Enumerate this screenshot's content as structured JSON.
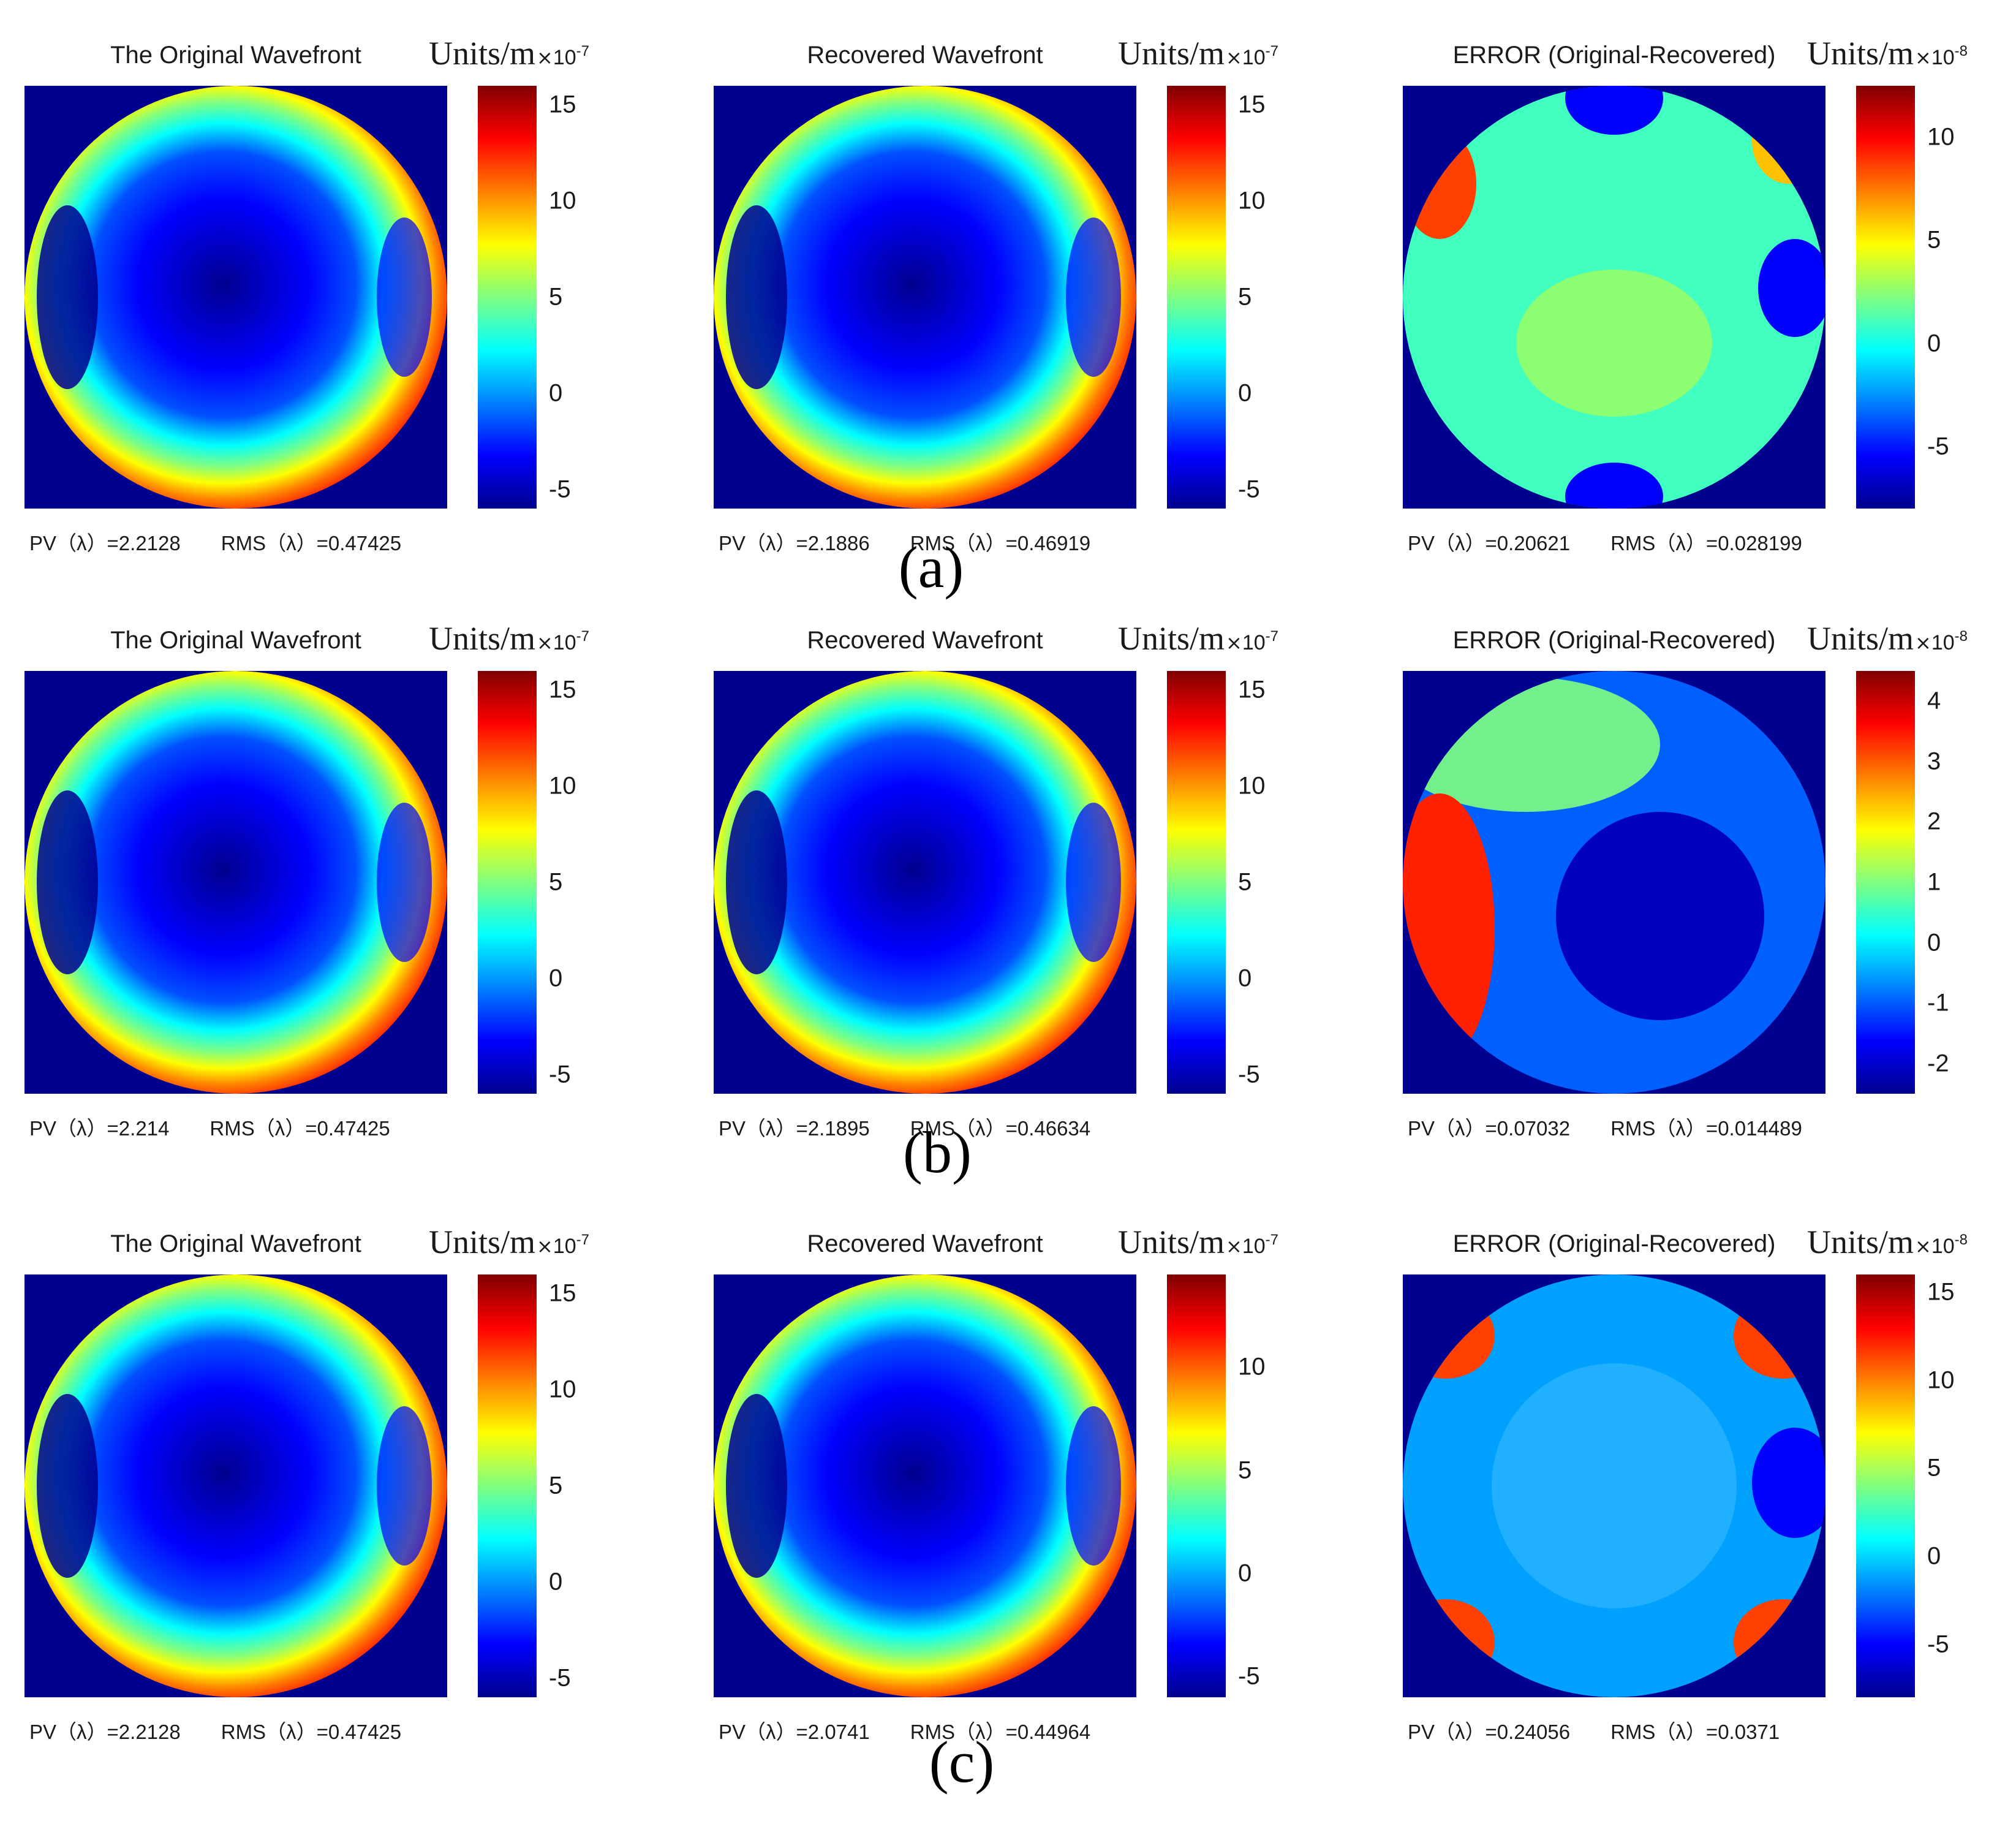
{
  "colors": {
    "jet": [
      "#00008f",
      "#0000ff",
      "#0080ff",
      "#00ffff",
      "#80ff80",
      "#ffff00",
      "#ff8000",
      "#ff0000",
      "#800000"
    ]
  },
  "row_labels": [
    "(a)",
    "(b)",
    "(c)"
  ],
  "units_label": {
    "main": "Units/m",
    "sep": "×",
    "mantissa": "10"
  },
  "chart_data": [
    {
      "type": "heatmap",
      "title": "The Original Wavefront",
      "colorbar": {
        "exponent": "-7",
        "range": [
          -6,
          16
        ],
        "ticks": [
          "-5",
          "0",
          "5",
          "10",
          "15"
        ],
        "tick_values": [
          -5,
          0,
          5,
          10,
          15
        ]
      },
      "stats": {
        "pv_label": "PV（λ）=2.2128",
        "rms_label": "RMS（λ）=0.47425",
        "pv": 2.2128,
        "rms": 0.47425
      }
    },
    {
      "type": "heatmap",
      "title": "Recovered Wavefront",
      "colorbar": {
        "exponent": "-7",
        "range": [
          -6,
          16
        ],
        "ticks": [
          "-5",
          "0",
          "5",
          "10",
          "15"
        ],
        "tick_values": [
          -5,
          0,
          5,
          10,
          15
        ]
      },
      "stats": {
        "pv_label": "PV（λ）=2.1886",
        "rms_label": "RMS（λ）=0.46919",
        "pv": 2.1886,
        "rms": 0.46919
      }
    },
    {
      "type": "heatmap",
      "title": "ERROR (Original-Recovered)",
      "colorbar": {
        "exponent": "-8",
        "range": [
          -8,
          12.5
        ],
        "ticks": [
          "-5",
          "0",
          "5",
          "10"
        ],
        "tick_values": [
          -5,
          0,
          5,
          10
        ]
      },
      "stats": {
        "pv_label": "PV（λ）=0.20621",
        "rms_label": "RMS（λ）=0.028199",
        "pv": 0.20621,
        "rms": 0.028199
      }
    },
    {
      "type": "heatmap",
      "title": "The Original Wavefront",
      "colorbar": {
        "exponent": "-7",
        "range": [
          -6,
          16
        ],
        "ticks": [
          "-5",
          "0",
          "5",
          "10",
          "15"
        ],
        "tick_values": [
          -5,
          0,
          5,
          10,
          15
        ]
      },
      "stats": {
        "pv_label": "PV（λ）=2.214",
        "rms_label": "RMS（λ）=0.47425",
        "pv": 2.214,
        "rms": 0.47425
      }
    },
    {
      "type": "heatmap",
      "title": "Recovered Wavefront",
      "colorbar": {
        "exponent": "-7",
        "range": [
          -6,
          16
        ],
        "ticks": [
          "-5",
          "0",
          "5",
          "10",
          "15"
        ],
        "tick_values": [
          -5,
          0,
          5,
          10,
          15
        ]
      },
      "stats": {
        "pv_label": "PV（λ）=2.1895",
        "rms_label": "RMS（λ）=0.46634",
        "pv": 2.1895,
        "rms": 0.46634
      }
    },
    {
      "type": "heatmap",
      "title": "ERROR (Original-Recovered)",
      "colorbar": {
        "exponent": "-8",
        "range": [
          -2.5,
          4.5
        ],
        "ticks": [
          "-2",
          "-1",
          "0",
          "1",
          "2",
          "3",
          "4"
        ],
        "tick_values": [
          -2,
          -1,
          0,
          1,
          2,
          3,
          4
        ]
      },
      "stats": {
        "pv_label": "PV（λ）=0.07032",
        "rms_label": "RMS（λ）=0.014489",
        "pv": 0.07032,
        "rms": 0.014489
      }
    },
    {
      "type": "heatmap",
      "title": "The Original Wavefront",
      "colorbar": {
        "exponent": "-7",
        "range": [
          -6,
          16
        ],
        "ticks": [
          "-5",
          "0",
          "5",
          "10",
          "15"
        ],
        "tick_values": [
          -5,
          0,
          5,
          10,
          15
        ]
      },
      "stats": {
        "pv_label": "PV（λ）=2.2128",
        "rms_label": "RMS（λ）=0.47425",
        "pv": 2.2128,
        "rms": 0.47425
      }
    },
    {
      "type": "heatmap",
      "title": "Recovered Wavefront",
      "colorbar": {
        "exponent": "-7",
        "range": [
          -6,
          14.5
        ],
        "ticks": [
          "-5",
          "0",
          "5",
          "10"
        ],
        "tick_values": [
          -5,
          0,
          5,
          10
        ]
      },
      "stats": {
        "pv_label": "PV（λ）=2.0741",
        "rms_label": "RMS（λ）=0.44964",
        "pv": 2.0741,
        "rms": 0.44964
      }
    },
    {
      "type": "heatmap",
      "title": "ERROR (Original-Recovered)",
      "colorbar": {
        "exponent": "-8",
        "range": [
          -8,
          16
        ],
        "ticks": [
          "-5",
          "0",
          "5",
          "10",
          "15"
        ],
        "tick_values": [
          -5,
          0,
          5,
          10,
          15
        ]
      },
      "stats": {
        "pv_label": "PV（λ）=0.24056",
        "rms_label": "RMS（λ）=0.0371",
        "pv": 0.24056,
        "rms": 0.0371
      }
    }
  ]
}
